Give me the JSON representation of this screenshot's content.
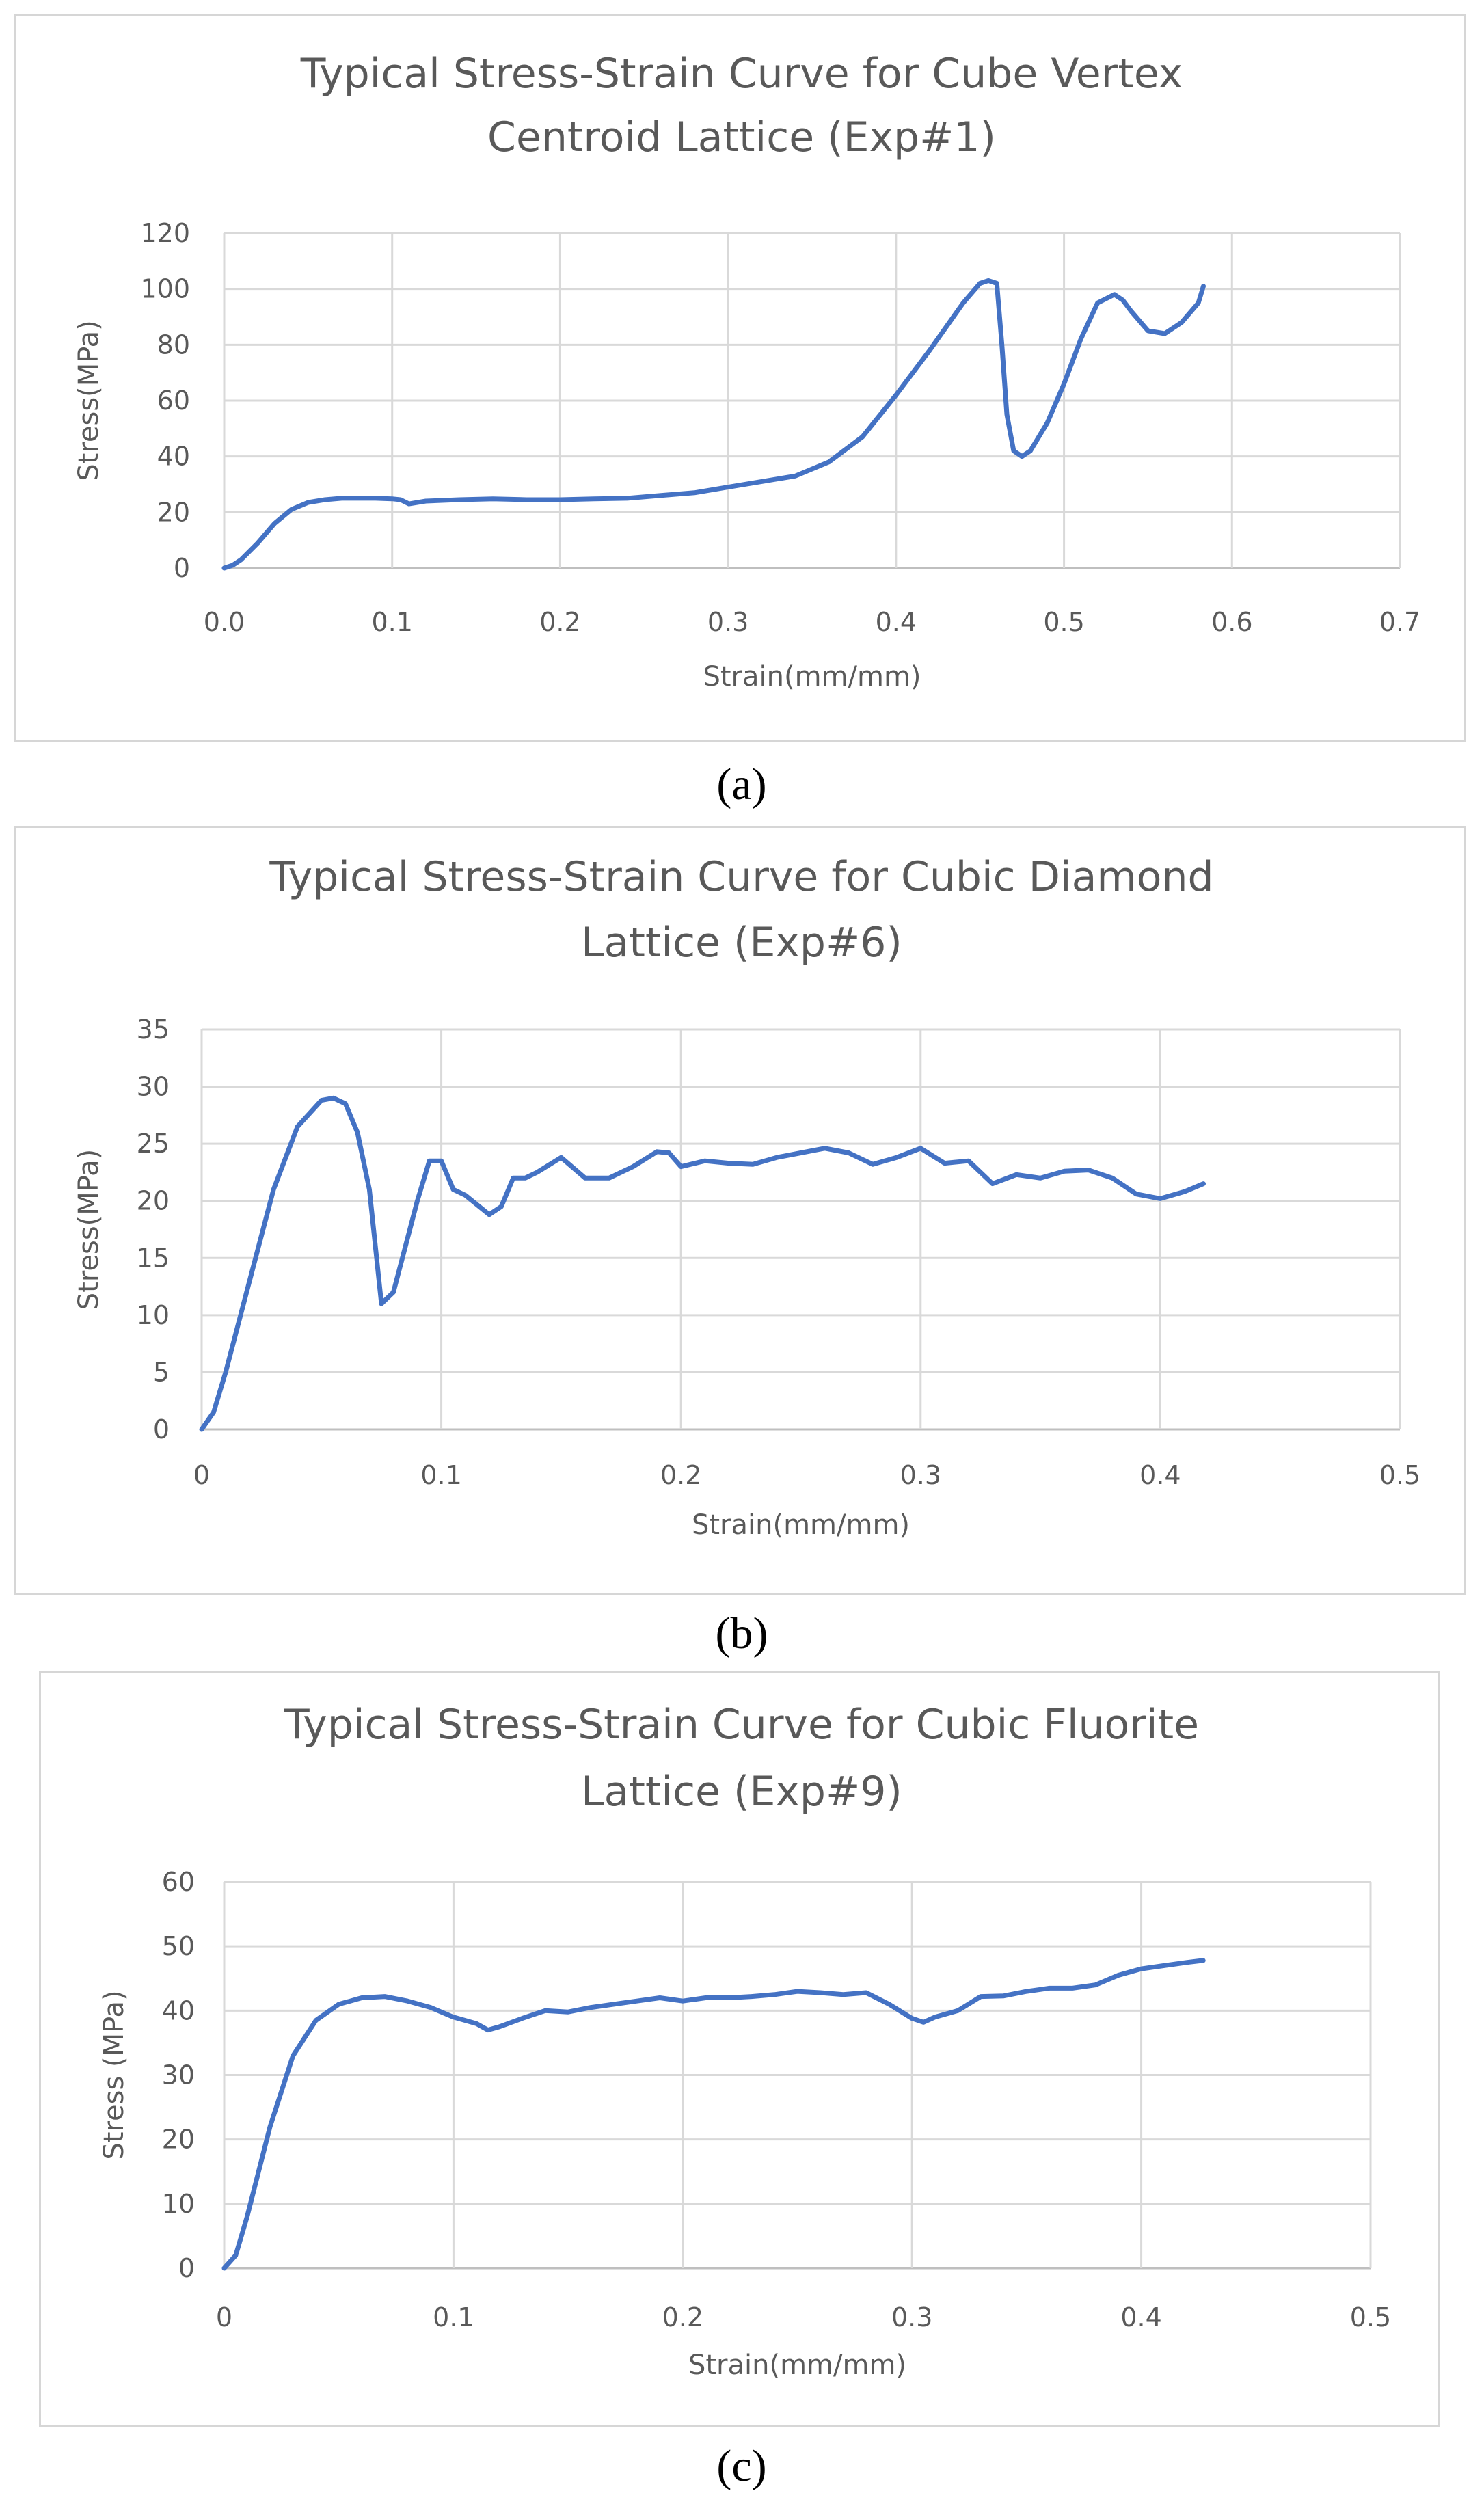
{
  "captions": [
    "(a)",
    "(b)",
    "(c)"
  ],
  "colors": {
    "series": "#4472c4",
    "grid": "#d9d9d9",
    "text": "#595959"
  },
  "chart_data": [
    {
      "type": "line",
      "title_lines": [
        "Typical Stress-Strain Curve for Cube Vertex",
        "Centroid Lattice (Exp#1)"
      ],
      "xlabel": "Strain(mm/mm)",
      "ylabel": "Stress(MPa)",
      "xlim": [
        0,
        0.7
      ],
      "ylim": [
        0,
        120
      ],
      "x_ticks": [
        0,
        0.1,
        0.2,
        0.3,
        0.4,
        0.5,
        0.6,
        0.7
      ],
      "x_tick_labels": [
        "0.0",
        "0.1",
        "0.2",
        "0.3",
        "0.4",
        "0.5",
        "0.6",
        "0.7"
      ],
      "y_ticks": [
        0,
        20,
        40,
        60,
        80,
        100,
        120
      ],
      "y_tick_labels": [
        "0",
        "20",
        "40",
        "60",
        "80",
        "100",
        "120"
      ],
      "grid": true,
      "series": [
        {
          "name": "Exp#1",
          "x": [
            0,
            0.005,
            0.01,
            0.02,
            0.03,
            0.04,
            0.05,
            0.06,
            0.07,
            0.08,
            0.09,
            0.1,
            0.105,
            0.11,
            0.12,
            0.14,
            0.16,
            0.18,
            0.2,
            0.22,
            0.24,
            0.26,
            0.28,
            0.3,
            0.32,
            0.34,
            0.36,
            0.38,
            0.4,
            0.42,
            0.44,
            0.45,
            0.455,
            0.46,
            0.463,
            0.466,
            0.47,
            0.475,
            0.48,
            0.49,
            0.5,
            0.51,
            0.52,
            0.53,
            0.535,
            0.54,
            0.55,
            0.56,
            0.57,
            0.58,
            0.583
          ],
          "y": [
            0,
            1,
            3,
            9,
            16,
            21,
            23.5,
            24.5,
            25,
            25,
            25,
            24.8,
            24.5,
            23,
            24,
            24.5,
            24.8,
            24.5,
            24.5,
            24.8,
            25,
            26,
            27,
            29,
            31,
            33,
            38,
            47,
            62,
            78,
            95,
            102,
            103,
            102,
            80,
            55,
            42,
            40,
            42,
            52,
            66,
            82,
            95,
            98,
            96,
            92,
            85,
            84,
            88,
            95,
            101
          ]
        }
      ]
    },
    {
      "type": "line",
      "title_lines": [
        "Typical Stress-Strain Curve for Cubic Diamond",
        "Lattice (Exp#6)"
      ],
      "xlabel": "Strain(mm/mm)",
      "ylabel": "Stress(MPa)",
      "xlim": [
        0,
        0.5
      ],
      "ylim": [
        0,
        35
      ],
      "x_ticks": [
        0,
        0.1,
        0.2,
        0.3,
        0.4,
        0.5
      ],
      "x_tick_labels": [
        "0",
        "0.1",
        "0.2",
        "0.3",
        "0.4",
        "0.5"
      ],
      "y_ticks": [
        0,
        5,
        10,
        15,
        20,
        25,
        30,
        35
      ],
      "y_tick_labels": [
        "0",
        "5",
        "10",
        "15",
        "20",
        "25",
        "30",
        "35"
      ],
      "grid": true,
      "series": [
        {
          "name": "Exp#6",
          "x": [
            0,
            0.005,
            0.01,
            0.02,
            0.03,
            0.04,
            0.05,
            0.055,
            0.06,
            0.065,
            0.07,
            0.075,
            0.08,
            0.085,
            0.09,
            0.095,
            0.1,
            0.105,
            0.11,
            0.12,
            0.125,
            0.13,
            0.135,
            0.14,
            0.15,
            0.16,
            0.17,
            0.18,
            0.19,
            0.195,
            0.2,
            0.21,
            0.22,
            0.23,
            0.24,
            0.25,
            0.26,
            0.27,
            0.28,
            0.29,
            0.3,
            0.31,
            0.32,
            0.33,
            0.34,
            0.35,
            0.36,
            0.37,
            0.38,
            0.39,
            0.4,
            0.41,
            0.418
          ],
          "y": [
            0,
            1.5,
            5,
            13,
            21,
            26.5,
            28.8,
            29,
            28.5,
            26,
            21,
            11,
            12,
            16,
            20,
            23.5,
            23.5,
            21,
            20.5,
            18.8,
            19.5,
            22,
            22,
            22.5,
            23.8,
            22,
            22,
            23,
            24.3,
            24.2,
            23,
            23.5,
            23.3,
            23.2,
            23.8,
            24.2,
            24.6,
            24.2,
            23.2,
            23.8,
            24.6,
            23.3,
            23.5,
            21.5,
            22.3,
            22,
            22.6,
            22.7,
            22,
            20.6,
            20.2,
            20.8,
            21.5
          ]
        }
      ]
    },
    {
      "type": "line",
      "title_lines": [
        "Typical Stress-Strain Curve for Cubic Fluorite",
        "Lattice (Exp#9)"
      ],
      "xlabel": "Strain(mm/mm)",
      "ylabel": "Stress (MPa)",
      "xlim": [
        0,
        0.5
      ],
      "ylim": [
        0,
        60
      ],
      "x_ticks": [
        0,
        0.1,
        0.2,
        0.3,
        0.4,
        0.5
      ],
      "x_tick_labels": [
        "0",
        "0.1",
        "0.2",
        "0.3",
        "0.4",
        "0.5"
      ],
      "y_ticks": [
        0,
        10,
        20,
        30,
        40,
        50,
        60
      ],
      "y_tick_labels": [
        "0",
        "10",
        "20",
        "30",
        "40",
        "50",
        "60"
      ],
      "grid": true,
      "series": [
        {
          "name": "Exp#9",
          "x": [
            0,
            0.005,
            0.01,
            0.02,
            0.03,
            0.04,
            0.05,
            0.06,
            0.07,
            0.08,
            0.09,
            0.1,
            0.11,
            0.115,
            0.12,
            0.13,
            0.14,
            0.15,
            0.16,
            0.17,
            0.18,
            0.19,
            0.2,
            0.21,
            0.22,
            0.23,
            0.24,
            0.25,
            0.26,
            0.27,
            0.28,
            0.29,
            0.3,
            0.305,
            0.31,
            0.32,
            0.33,
            0.34,
            0.35,
            0.36,
            0.37,
            0.38,
            0.39,
            0.4,
            0.41,
            0.42,
            0.427
          ],
          "y": [
            0,
            2,
            8,
            22,
            33,
            38.5,
            41,
            42,
            42.2,
            41.5,
            40.5,
            39,
            38,
            37,
            37.5,
            38.8,
            40,
            39.8,
            40.5,
            41,
            41.5,
            42,
            41.5,
            42,
            42,
            42.2,
            42.5,
            43,
            42.8,
            42.5,
            42.8,
            41,
            38.8,
            38.2,
            39,
            40,
            42.2,
            42.3,
            43,
            43.5,
            43.5,
            44,
            45.5,
            46.5,
            47,
            47.5,
            47.8
          ]
        }
      ]
    }
  ]
}
